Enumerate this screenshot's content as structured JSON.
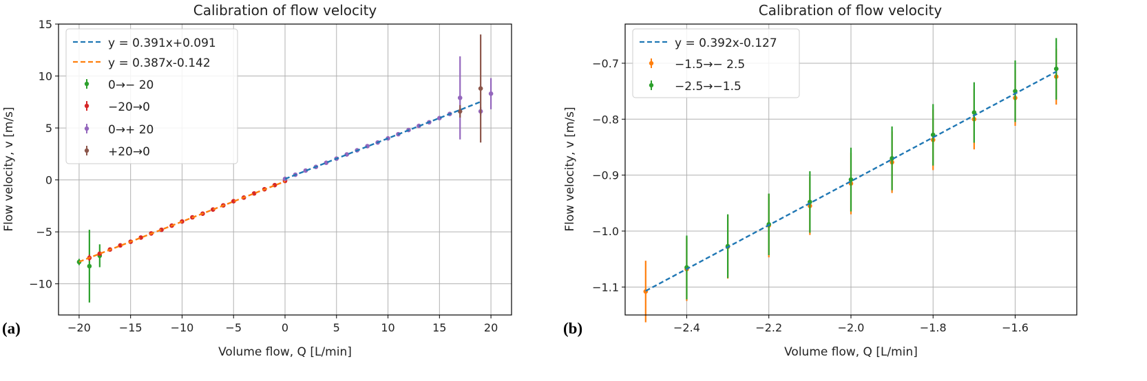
{
  "colors": {
    "blue": "#1f77b4",
    "orange": "#ff7f0e",
    "green": "#2ca02c",
    "red": "#d62728",
    "purple": "#9467bd",
    "brown": "#8c564b",
    "grid": "#b0b0b0"
  },
  "chart_data": [
    {
      "panel_label": "(a)",
      "type": "scatter",
      "title": "Calibration of flow velocity",
      "xlabel": "Volume flow, Q [L/min]",
      "ylabel": "Flow velocity, v [m/s]",
      "xlim": [
        -22,
        22
      ],
      "ylim": [
        -13,
        15
      ],
      "xticks": [
        -20,
        -15,
        -10,
        -5,
        0,
        5,
        10,
        15,
        20
      ],
      "xtick_labels": [
        "−20",
        "−15",
        "−10",
        "−5",
        "0",
        "5",
        "10",
        "15",
        "20"
      ],
      "yticks": [
        -10,
        -5,
        0,
        5,
        10,
        15
      ],
      "ytick_labels": [
        "−10",
        "−5",
        "0",
        "5",
        "10",
        "15"
      ],
      "grid": true,
      "legend_position": "top-left",
      "fit_lines": [
        {
          "label": "y = 0.391x+0.091",
          "slope": 0.391,
          "intercept": 0.091,
          "x_range": [
            0,
            19
          ],
          "color": "blue"
        },
        {
          "label": "y = 0.387x-0.142",
          "slope": 0.387,
          "intercept": -0.142,
          "x_range": [
            -20,
            0
          ],
          "color": "orange"
        }
      ],
      "series": [
        {
          "name": "0→− 20",
          "color": "green",
          "x": [
            -20,
            -19,
            -18
          ],
          "y": [
            -7.9,
            -8.3,
            -7.3
          ],
          "err": [
            0.3,
            3.5,
            1.1
          ]
        },
        {
          "name": "−20→0",
          "color": "red",
          "x": [
            -19,
            -18,
            -17,
            -16,
            -15,
            -14,
            -13,
            -12,
            -11,
            -10,
            -9,
            -8,
            -7,
            -6,
            -5,
            -4,
            -3,
            -2,
            -1,
            0
          ],
          "y": [
            -7.5,
            -7.1,
            -6.7,
            -6.3,
            -5.95,
            -5.55,
            -5.15,
            -4.8,
            -4.4,
            -4.0,
            -3.6,
            -3.25,
            -2.85,
            -2.45,
            -2.05,
            -1.7,
            -1.3,
            -0.9,
            -0.5,
            -0.1
          ],
          "err": [
            0.3,
            0.15,
            0.15,
            0.15,
            0.15,
            0.15,
            0.15,
            0.15,
            0.15,
            0.15,
            0.15,
            0.15,
            0.15,
            0.15,
            0.15,
            0.15,
            0.15,
            0.15,
            0.15,
            0.15
          ]
        },
        {
          "name": "0→+ 20",
          "color": "purple",
          "x": [
            0,
            1,
            2,
            3,
            4,
            5,
            6,
            7,
            8,
            9,
            10,
            11,
            12,
            13,
            14,
            15,
            16,
            17,
            19,
            20
          ],
          "y": [
            0.1,
            0.5,
            0.9,
            1.25,
            1.65,
            2.05,
            2.45,
            2.85,
            3.25,
            3.6,
            4.0,
            4.4,
            4.8,
            5.2,
            5.55,
            5.95,
            6.35,
            7.9,
            6.6,
            8.3
          ],
          "err": [
            0.15,
            0.15,
            0.15,
            0.15,
            0.15,
            0.15,
            0.15,
            0.15,
            0.15,
            0.15,
            0.15,
            0.15,
            0.15,
            0.15,
            0.15,
            0.15,
            0.15,
            4.0,
            0.4,
            1.5
          ]
        },
        {
          "name": "+20→0",
          "color": "brown",
          "x": [
            17,
            19
          ],
          "y": [
            6.6,
            8.8
          ],
          "err": [
            0.6,
            5.2
          ]
        }
      ]
    },
    {
      "panel_label": "(b)",
      "type": "scatter",
      "title": "Calibration of flow velocity",
      "xlabel": "Volume flow, Q [L/min]",
      "ylabel": "Flow velocity, v [m/s]",
      "xlim": [
        -2.55,
        -1.45
      ],
      "ylim": [
        -1.15,
        -0.63
      ],
      "xticks": [
        -2.4,
        -2.2,
        -2.0,
        -1.8,
        -1.6
      ],
      "xtick_labels": [
        "−2.4",
        "−2.2",
        "−2.0",
        "−1.8",
        "−1.6"
      ],
      "yticks": [
        -1.1,
        -1.0,
        -0.9,
        -0.8,
        -0.7
      ],
      "ytick_labels": [
        "−1.1",
        "−1.0",
        "−0.9",
        "−0.8",
        "−0.7"
      ],
      "grid": true,
      "legend_position": "top-left",
      "fit_lines": [
        {
          "label": "y = 0.392x-0.127",
          "slope": 0.392,
          "intercept": -0.127,
          "x_range": [
            -2.5,
            -1.5
          ],
          "color": "blue"
        }
      ],
      "series": [
        {
          "name": "−1.5→− 2.5",
          "color": "orange",
          "x": [
            -2.5,
            -2.4,
            -2.3,
            -2.2,
            -2.1,
            -2.0,
            -1.9,
            -1.8,
            -1.7,
            -1.6,
            -1.5
          ],
          "y": [
            -1.108,
            -1.068,
            -1.028,
            -0.99,
            -0.955,
            -0.915,
            -0.877,
            -0.837,
            -0.8,
            -0.762,
            -0.724
          ],
          "err": [
            0.055,
            0.057,
            0.057,
            0.057,
            0.052,
            0.055,
            0.055,
            0.054,
            0.054,
            0.05,
            0.05
          ]
        },
        {
          "name": "−2.5→−1.5",
          "color": "green",
          "x": [
            -2.4,
            -2.3,
            -2.2,
            -2.1,
            -2.0,
            -1.9,
            -1.8,
            -1.7,
            -1.6,
            -1.5
          ],
          "y": [
            -1.065,
            -1.027,
            -0.988,
            -0.948,
            -0.908,
            -0.87,
            -0.828,
            -0.788,
            -0.75,
            -0.71
          ],
          "err": [
            0.057,
            0.057,
            0.055,
            0.055,
            0.057,
            0.057,
            0.055,
            0.054,
            0.055,
            0.055
          ]
        }
      ]
    }
  ]
}
